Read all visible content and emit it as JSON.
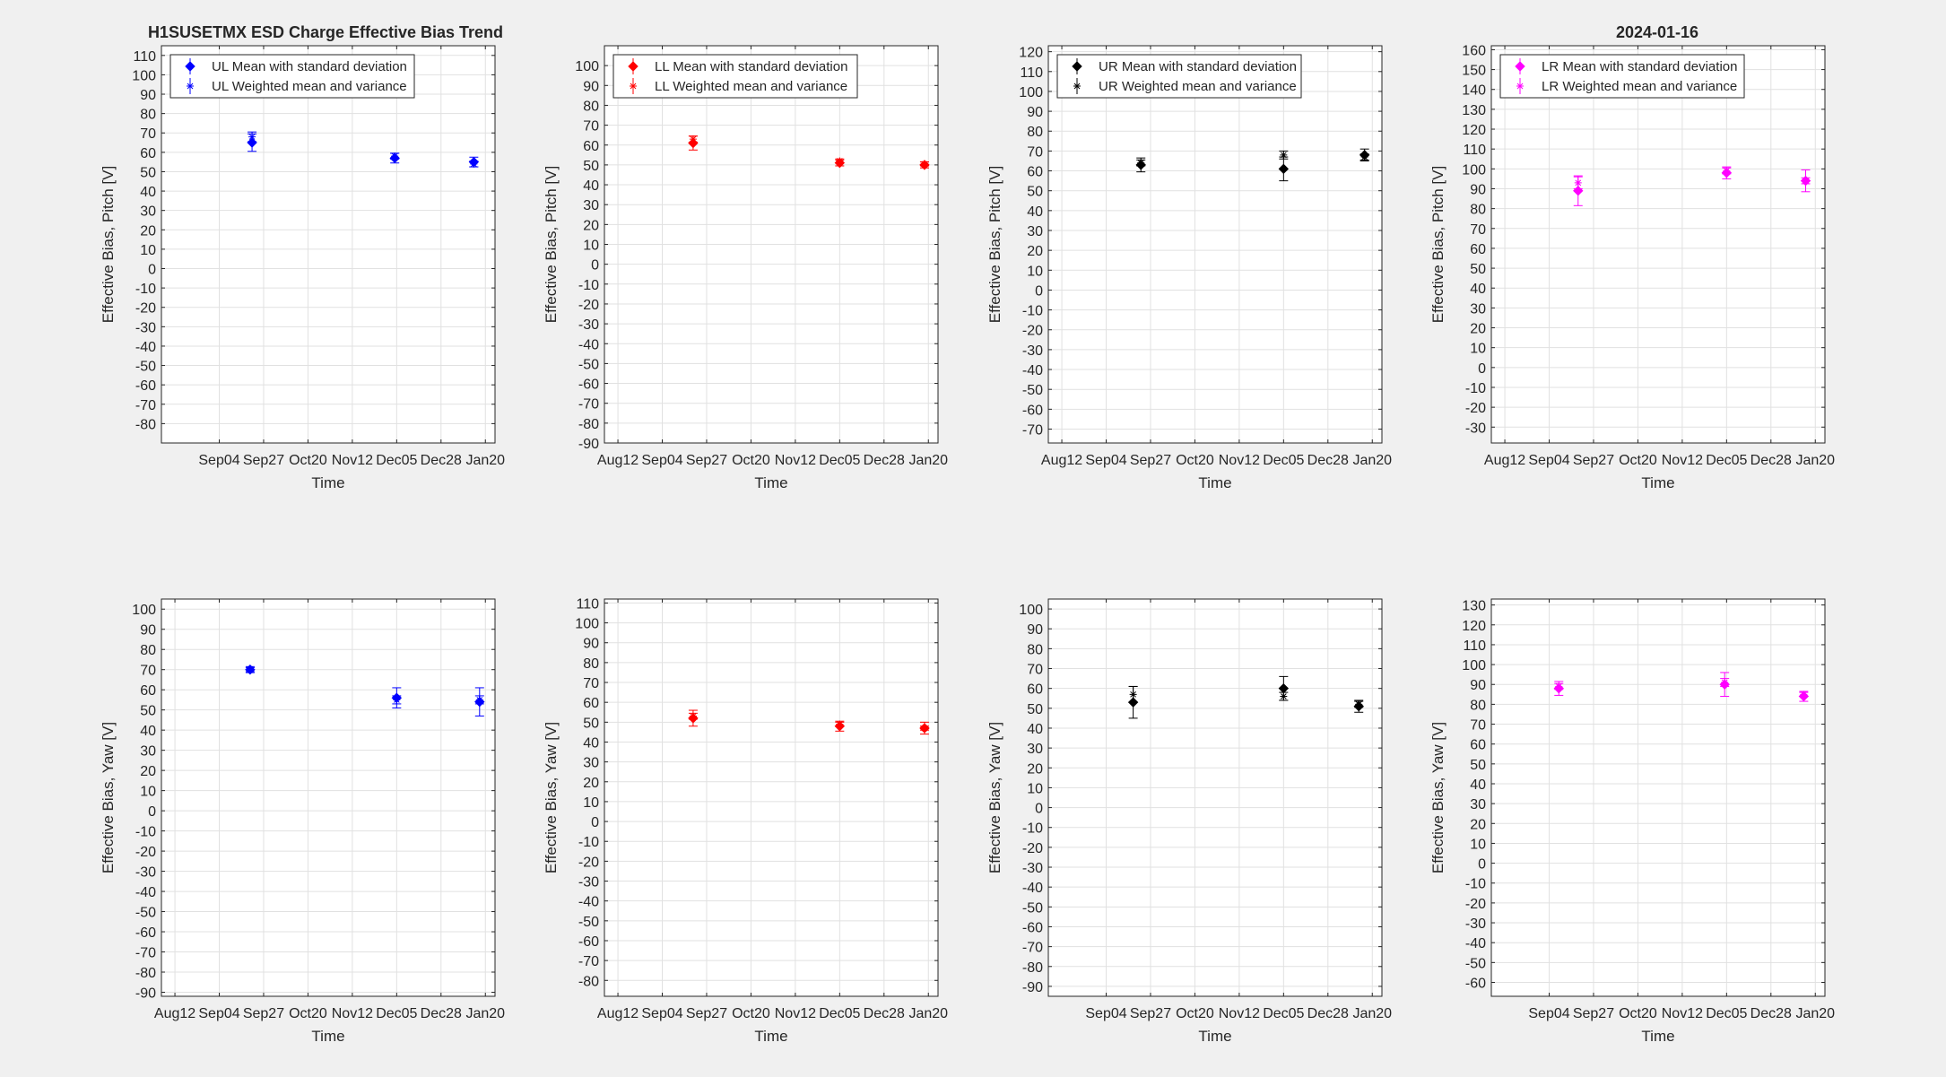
{
  "figure": {
    "title_left": "H1SUSETMX ESD Charge Effective Bias Trend",
    "title_right": "2024-01-16"
  },
  "chart_data": [
    {
      "type": "scatter",
      "panel": "top-1",
      "xlabel": "Time",
      "ylabel": "Effective Bias, Pitch [V]",
      "xticks": [
        "Sep04",
        "Sep27",
        "Oct20",
        "Nov12",
        "Dec05",
        "Dec28",
        "Jan20"
      ],
      "ylim": [
        -90,
        115
      ],
      "yticks": [
        -80,
        -70,
        -60,
        -50,
        -40,
        -30,
        -20,
        -10,
        0,
        10,
        20,
        30,
        40,
        50,
        60,
        70,
        80,
        90,
        100,
        110
      ],
      "color": "#0000ff",
      "grid": true,
      "legend_position": "top-left",
      "series": [
        {
          "name": "UL Mean with standard deviation",
          "marker": "diamond",
          "points": [
            {
              "x": "2023-09-21",
              "y": 65,
              "err": 4.5
            },
            {
              "x": "2023-12-04",
              "y": 57,
              "err": 2.5
            },
            {
              "x": "2024-01-14",
              "y": 55,
              "err": 2.5
            }
          ]
        },
        {
          "name": "UL Weighted mean and variance",
          "marker": "star",
          "points": [
            {
              "x": "2023-09-21",
              "y": 68,
              "err": 2.5
            },
            {
              "x": "2023-12-04",
              "y": 58,
              "err": 1.5
            },
            {
              "x": "2024-01-14",
              "y": 54,
              "err": 1.5
            }
          ]
        }
      ]
    },
    {
      "type": "scatter",
      "panel": "top-2",
      "xlabel": "Time",
      "ylabel": "Effective Bias, Pitch [V]",
      "xticks": [
        "Aug12",
        "Sep04",
        "Sep27",
        "Oct20",
        "Nov12",
        "Dec05",
        "Dec28",
        "Jan20"
      ],
      "ylim": [
        -90,
        110
      ],
      "yticks": [
        -90,
        -80,
        -70,
        -60,
        -50,
        -40,
        -30,
        -20,
        -10,
        0,
        10,
        20,
        30,
        40,
        50,
        60,
        70,
        80,
        90,
        100
      ],
      "color": "#ff0000",
      "grid": true,
      "legend_position": "top-left",
      "series": [
        {
          "name": "LL Mean with standard deviation",
          "marker": "diamond",
          "points": [
            {
              "x": "2023-09-20",
              "y": 61,
              "err": 3.5
            },
            {
              "x": "2023-12-05",
              "y": 51,
              "err": 1.5
            },
            {
              "x": "2024-01-18",
              "y": 50,
              "err": 1.5
            }
          ]
        },
        {
          "name": "LL Weighted mean and variance",
          "marker": "star",
          "points": [
            {
              "x": "2023-09-20",
              "y": 63,
              "err": 1.5
            },
            {
              "x": "2023-12-05",
              "y": 52,
              "err": 1
            },
            {
              "x": "2024-01-18",
              "y": 50.5,
              "err": 1
            }
          ]
        }
      ]
    },
    {
      "type": "scatter",
      "panel": "top-3",
      "xlabel": "Time",
      "ylabel": "Effective Bias, Pitch [V]",
      "xticks": [
        "Aug12",
        "Sep04",
        "Sep27",
        "Oct20",
        "Nov12",
        "Dec05",
        "Dec28",
        "Jan20"
      ],
      "ylim": [
        -77,
        123
      ],
      "yticks": [
        -70,
        -60,
        -50,
        -40,
        -30,
        -20,
        -10,
        0,
        10,
        20,
        30,
        40,
        50,
        60,
        70,
        80,
        90,
        100,
        110,
        120
      ],
      "color": "#000000",
      "grid": true,
      "legend_position": "top-left",
      "series": [
        {
          "name": "UR Mean with standard deviation",
          "marker": "diamond",
          "points": [
            {
              "x": "2023-09-22",
              "y": 63,
              "err": 3.5
            },
            {
              "x": "2023-12-05",
              "y": 61,
              "err": 6
            },
            {
              "x": "2024-01-16",
              "y": 68,
              "err": 3
            }
          ]
        },
        {
          "name": "UR Weighted mean and variance",
          "marker": "star",
          "points": [
            {
              "x": "2023-09-22",
              "y": 64,
              "err": 1.5
            },
            {
              "x": "2023-12-05",
              "y": 68,
              "err": 2
            },
            {
              "x": "2024-01-16",
              "y": 67,
              "err": 1.5
            }
          ]
        }
      ]
    },
    {
      "type": "scatter",
      "panel": "top-4",
      "xlabel": "Time",
      "ylabel": "Effective Bias, Pitch [V]",
      "xticks": [
        "Aug12",
        "Sep04",
        "Sep27",
        "Oct20",
        "Nov12",
        "Dec05",
        "Dec28",
        "Jan20"
      ],
      "ylim": [
        -38,
        162
      ],
      "yticks": [
        -30,
        -20,
        -10,
        0,
        10,
        20,
        30,
        40,
        50,
        60,
        70,
        80,
        90,
        100,
        110,
        120,
        130,
        140,
        150,
        160
      ],
      "color": "#ff00ff",
      "grid": true,
      "legend_position": "top-left",
      "series": [
        {
          "name": "LR Mean with standard deviation",
          "marker": "diamond",
          "points": [
            {
              "x": "2023-09-19",
              "y": 89,
              "err": 7.5
            },
            {
              "x": "2023-12-05",
              "y": 98,
              "err": 3
            },
            {
              "x": "2024-01-15",
              "y": 94,
              "err": 5.5
            }
          ]
        },
        {
          "name": "LR Weighted mean and variance",
          "marker": "star",
          "points": [
            {
              "x": "2023-09-19",
              "y": 93,
              "err": 3
            },
            {
              "x": "2023-12-05",
              "y": 99,
              "err": 1.5
            },
            {
              "x": "2024-01-15",
              "y": 94,
              "err": 1.5
            }
          ]
        }
      ]
    },
    {
      "type": "scatter",
      "panel": "bottom-1",
      "xlabel": "Time",
      "ylabel": "Effective Bias, Yaw [V]",
      "xticks": [
        "Aug12",
        "Sep04",
        "Sep27",
        "Oct20",
        "Nov12",
        "Dec05",
        "Dec28",
        "Jan20"
      ],
      "ylim": [
        -92,
        105
      ],
      "yticks": [
        -90,
        -80,
        -70,
        -60,
        -50,
        -40,
        -30,
        -20,
        -10,
        0,
        10,
        20,
        30,
        40,
        50,
        60,
        70,
        80,
        90,
        100
      ],
      "color": "#0000ff",
      "grid": true,
      "series": [
        {
          "name": "",
          "marker": "diamond",
          "points": [
            {
              "x": "2023-09-20",
              "y": 70,
              "err": 1.5
            },
            {
              "x": "2023-12-05",
              "y": 56,
              "err": 5
            },
            {
              "x": "2024-01-17",
              "y": 54,
              "err": 7
            }
          ]
        },
        {
          "name": "",
          "marker": "star",
          "points": [
            {
              "x": "2023-09-20",
              "y": 70,
              "err": 1
            },
            {
              "x": "2023-12-05",
              "y": 55,
              "err": 2
            },
            {
              "x": "2024-01-17",
              "y": 55,
              "err": 2
            }
          ]
        }
      ]
    },
    {
      "type": "scatter",
      "panel": "bottom-2",
      "xlabel": "Time",
      "ylabel": "Effective Bias, Yaw [V]",
      "xticks": [
        "Aug12",
        "Sep04",
        "Sep27",
        "Oct20",
        "Nov12",
        "Dec05",
        "Dec28",
        "Jan20"
      ],
      "ylim": [
        -88,
        112
      ],
      "yticks": [
        -80,
        -70,
        -60,
        -50,
        -40,
        -30,
        -20,
        -10,
        0,
        10,
        20,
        30,
        40,
        50,
        60,
        70,
        80,
        90,
        100,
        110
      ],
      "color": "#ff0000",
      "grid": true,
      "series": [
        {
          "name": "",
          "marker": "diamond",
          "points": [
            {
              "x": "2023-09-20",
              "y": 52,
              "err": 4
            },
            {
              "x": "2023-12-05",
              "y": 48,
              "err": 2.5
            },
            {
              "x": "2024-01-18",
              "y": 47,
              "err": 3
            }
          ]
        },
        {
          "name": "",
          "marker": "star",
          "points": [
            {
              "x": "2023-09-20",
              "y": 53,
              "err": 1.5
            },
            {
              "x": "2023-12-05",
              "y": 49,
              "err": 1
            },
            {
              "x": "2024-01-18",
              "y": 47,
              "err": 1
            }
          ]
        }
      ]
    },
    {
      "type": "scatter",
      "panel": "bottom-3",
      "xlabel": "Time",
      "ylabel": "Effective Bias, Yaw [V]",
      "xticks": [
        "Sep04",
        "Sep27",
        "Oct20",
        "Nov12",
        "Dec05",
        "Dec28",
        "Jan20"
      ],
      "ylim": [
        -95,
        105
      ],
      "yticks": [
        -90,
        -80,
        -70,
        -60,
        -50,
        -40,
        -30,
        -20,
        -10,
        0,
        10,
        20,
        30,
        40,
        50,
        60,
        70,
        80,
        90,
        100
      ],
      "color": "#000000",
      "grid": true,
      "series": [
        {
          "name": "",
          "marker": "diamond",
          "points": [
            {
              "x": "2023-09-18",
              "y": 53,
              "err": 8
            },
            {
              "x": "2023-12-05",
              "y": 60,
              "err": 6
            },
            {
              "x": "2024-01-13",
              "y": 51,
              "err": 3
            }
          ]
        },
        {
          "name": "",
          "marker": "star",
          "points": [
            {
              "x": "2023-09-18",
              "y": 57,
              "err": 4
            },
            {
              "x": "2023-12-05",
              "y": 56,
              "err": 2
            },
            {
              "x": "2024-01-13",
              "y": 52,
              "err": 1.5
            }
          ]
        }
      ]
    },
    {
      "type": "scatter",
      "panel": "bottom-4",
      "xlabel": "Time",
      "ylabel": "Effective Bias, Yaw [V]",
      "xticks": [
        "Sep04",
        "Sep27",
        "Oct20",
        "Nov12",
        "Dec05",
        "Dec28",
        "Jan20"
      ],
      "ylim": [
        -67,
        133
      ],
      "yticks": [
        -60,
        -50,
        -40,
        -30,
        -20,
        -10,
        0,
        10,
        20,
        30,
        40,
        50,
        60,
        70,
        80,
        90,
        100,
        110,
        120,
        130
      ],
      "color": "#ff00ff",
      "grid": true,
      "series": [
        {
          "name": "",
          "marker": "diamond",
          "points": [
            {
              "x": "2023-09-09",
              "y": 88,
              "err": 3.5
            },
            {
              "x": "2023-12-04",
              "y": 90,
              "err": 6
            },
            {
              "x": "2024-01-14",
              "y": 84,
              "err": 2.5
            }
          ]
        },
        {
          "name": "",
          "marker": "star",
          "points": [
            {
              "x": "2023-09-09",
              "y": 89,
              "err": 1.5
            },
            {
              "x": "2023-12-04",
              "y": 91,
              "err": 2
            },
            {
              "x": "2024-01-14",
              "y": 85,
              "err": 1
            }
          ]
        }
      ]
    }
  ]
}
